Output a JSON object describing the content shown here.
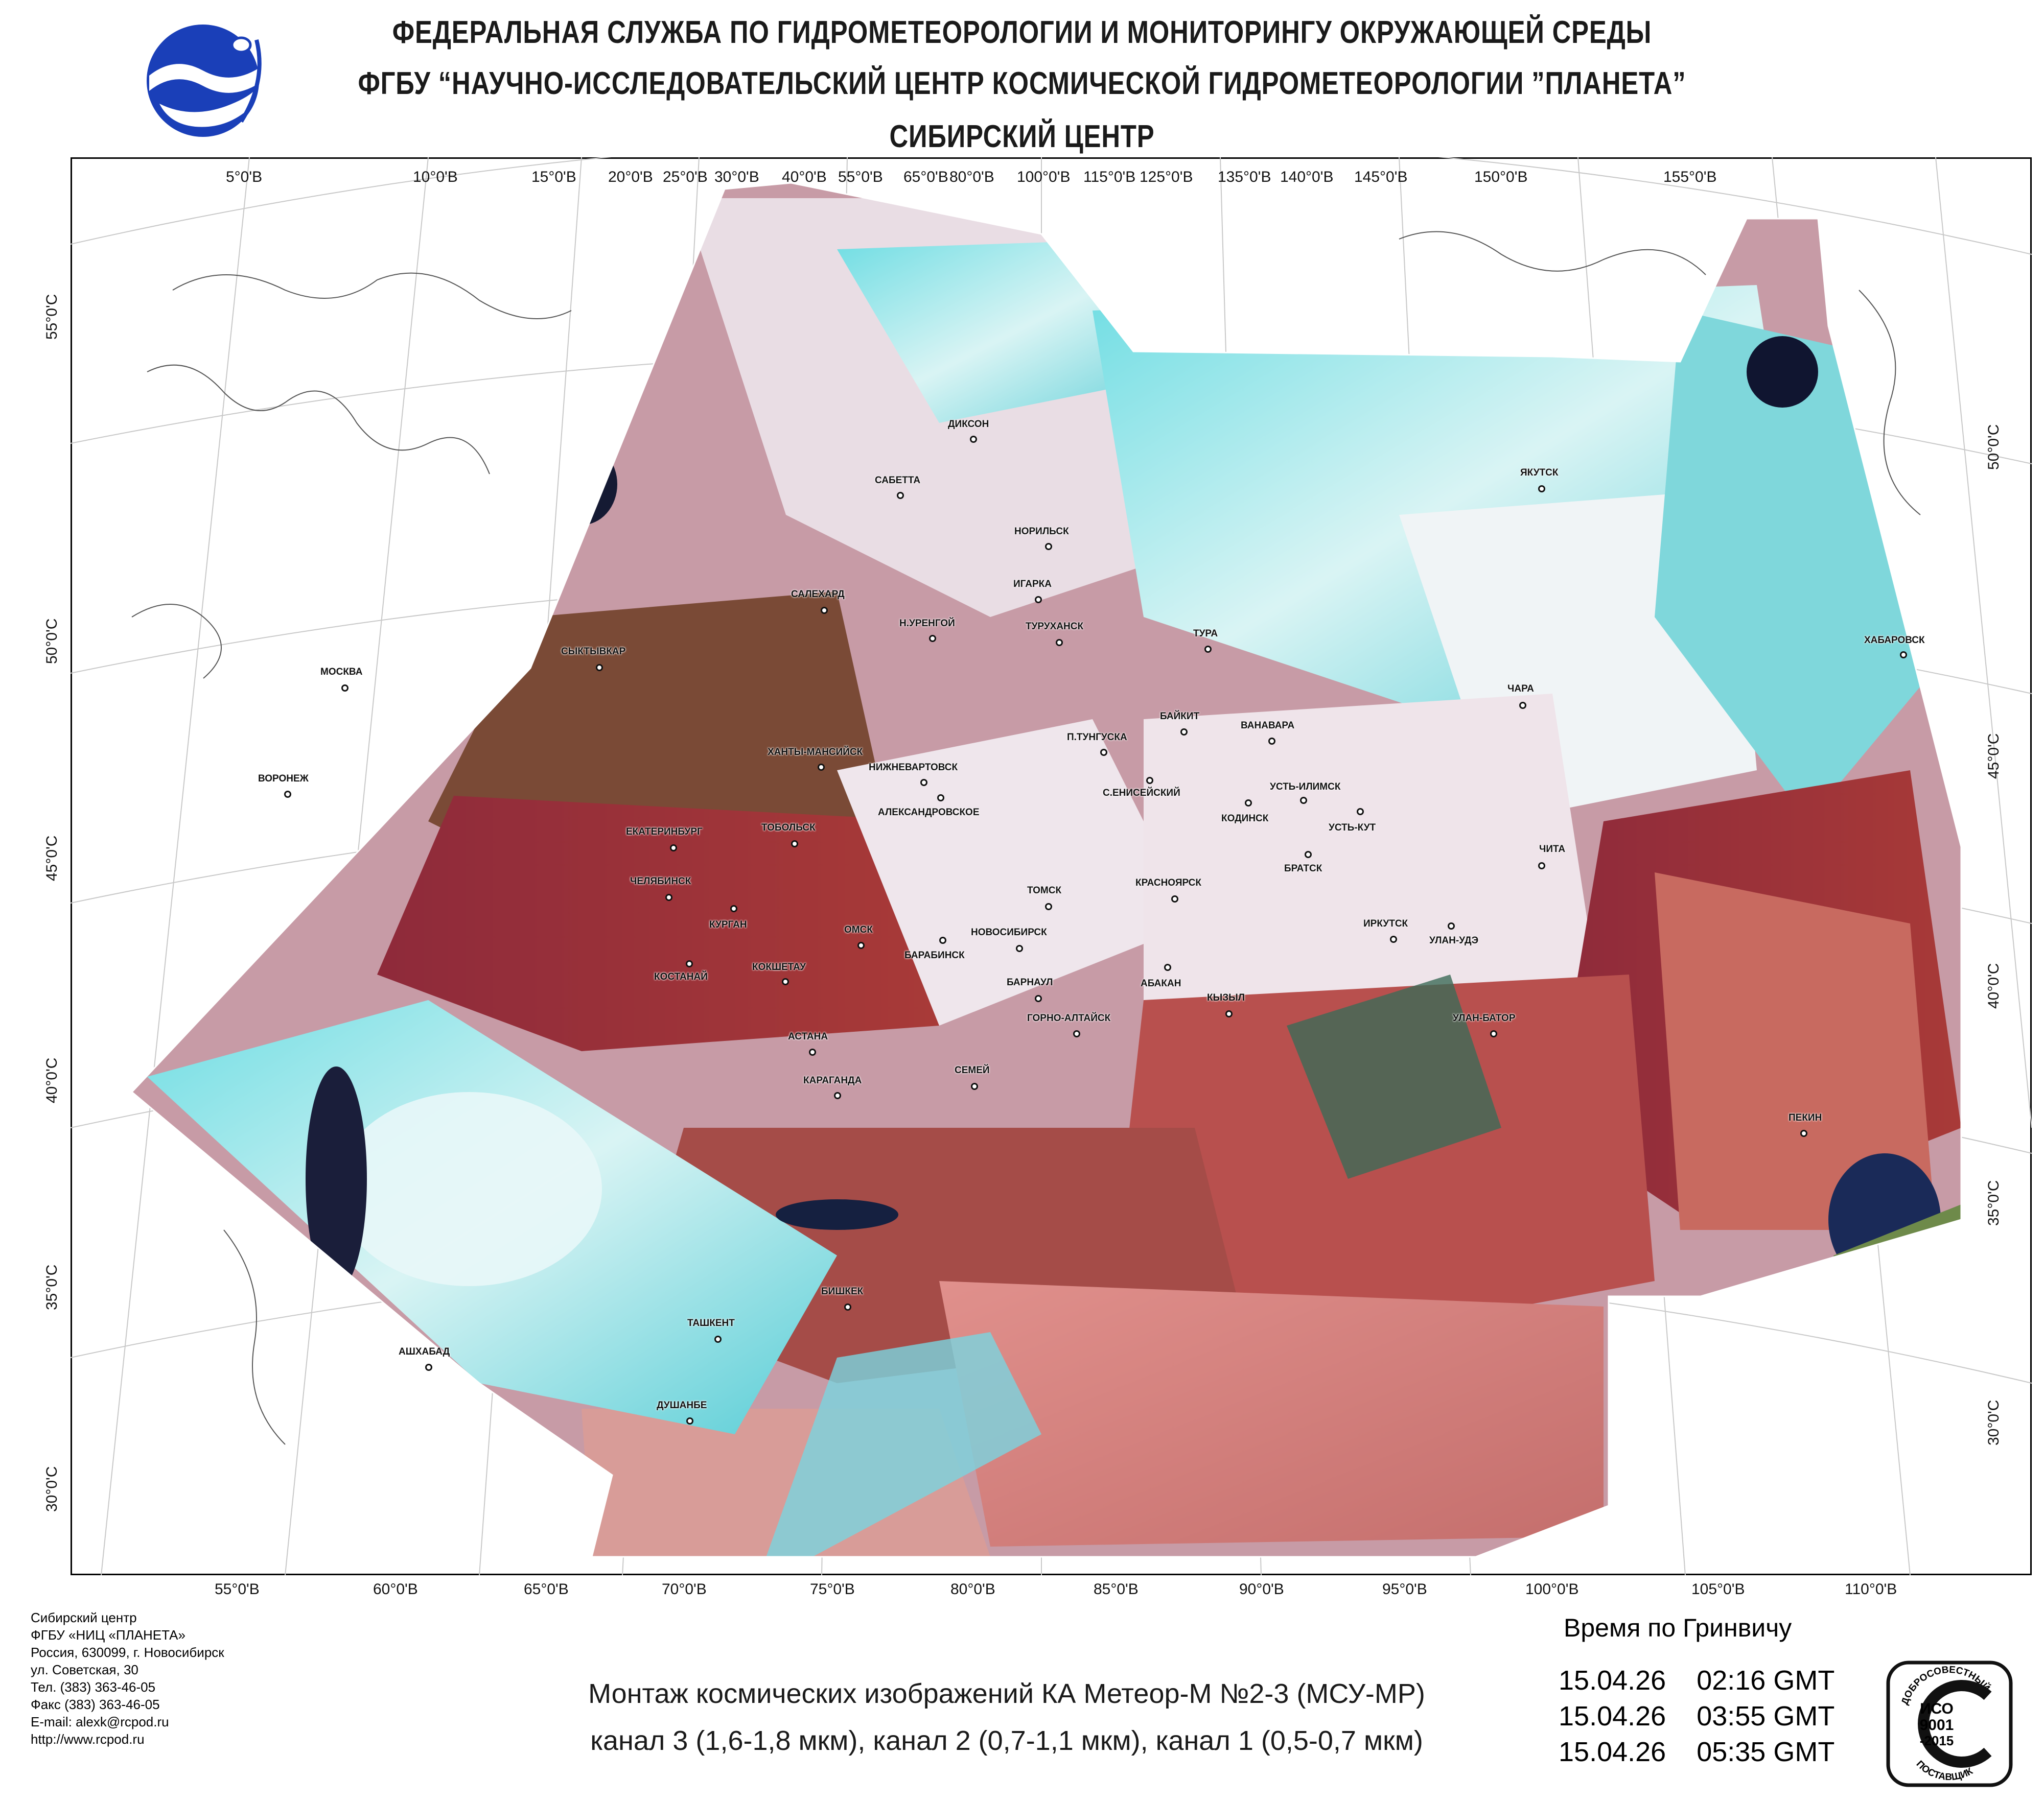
{
  "header": {
    "line1": "ФЕДЕРАЛЬНАЯ СЛУЖБА ПО ГИДРОМЕТЕОРОЛОГИИ И МОНИТОРИНГУ ОКРУЖАЮЩЕЙ СРЕДЫ",
    "line2": "ФГБУ “НАУЧНО-ИССЛЕДОВАТЕЛЬСКИЙ ЦЕНТР КОСМИЧЕСКОЙ ГИДРОМЕТЕОРОЛОГИИ ”ПЛАНЕТА”",
    "line3": "СИБИРСКИЙ  ЦЕНТР"
  },
  "map": {
    "top_lon_labels": [
      "5°0'В",
      "10°0'В",
      "15°0'В",
      "20°0'В",
      "25°0'В",
      "30°0'В",
      "40°0'В",
      "55°0'В",
      "65°0'В",
      "80°0'В",
      "100°0'В",
      "115°0'В",
      "125°0'В",
      "135°0'В",
      "140°0'В",
      "145°0'В",
      "150°0'В",
      "155°0'В"
    ],
    "bottom_lon_labels": [
      "55°0'В",
      "60°0'В",
      "65°0'В",
      "70°0'В",
      "75°0'В",
      "80°0'В",
      "85°0'В",
      "90°0'В",
      "95°0'В",
      "100°0'В",
      "105°0'В",
      "110°0'В"
    ],
    "left_lat_labels": [
      "55°0'С",
      "50°0'С",
      "45°0'С",
      "40°0'С",
      "35°0'С",
      "30°0'С"
    ],
    "right_lat_labels": [
      "50°0'С",
      "45°0'С",
      "40°0'С",
      "35°0'С",
      "30°0'С"
    ],
    "cities": [
      "ДИКСОН",
      "САБЕТТА",
      "НОРИЛЬСК",
      "ЯКУТСК",
      "ИГАРКА",
      "САЛЕХАРД",
      "Н.УРЕНГОЙ",
      "ТУРУХАНСК",
      "ТУРА",
      "ХАБАРОВСК",
      "СЫКТЫВКАР",
      "МОСКВА",
      "ЧАРА",
      "БАЙКИТ",
      "ВАНАВАРА",
      "П.ТУНГУСКА",
      "ХАНТЫ-МАНСИЙСК",
      "НИЖНЕВАРТОВСК",
      "С.ЕНИСЕЙСКИЙ",
      "ВОРОНЕЖ",
      "УСТЬ-ИЛИМСК",
      "КОДИНСК",
      "УСТЬ-КУТ",
      "АЛЕКСАНДРОВСКОЕ",
      "ТОБОЛЬСК",
      "ЕКАТЕРИНБУРГ",
      "БРАТСК",
      "ЧИТА",
      "ЧЕЛЯБИНСК",
      "ТОМСК",
      "КРАСНОЯРСК",
      "КУРГАН",
      "ОМСК",
      "НОВОСИБИРСК",
      "ИРКУТСК",
      "УЛАН-УДЭ",
      "БАРАБИНСК",
      "КОСТАНАЙ",
      "КОКШЕТАУ",
      "АБАКАН",
      "БАРНАУЛ",
      "КЫЗЫЛ",
      "ГОРНО-АЛТАЙСК",
      "УЛАН-БАТОР",
      "АСТАНА",
      "СЕМЕЙ",
      "КАРАГАНДА",
      "ПЕКИН",
      "БИШКЕК",
      "ТАШКЕНТ",
      "АШХАБАД",
      "ДУШАНБЕ"
    ]
  },
  "footer": {
    "org_lines": [
      "Сибирский центр",
      "ФГБУ «НИЦ «ПЛАНЕТА»",
      "Россия, 630099, г. Новосибирск",
      "ул. Советская, 30",
      "Тел. (383) 363-46-05",
      "Факс (383) 363-46-05",
      "E-mail: alexk@rcpod.ru",
      "http://www.rcpod.ru"
    ],
    "caption_line1": "Монтаж космических изображений КА Метеор-М №2-3 (МСУ-МР)",
    "caption_line2": "канал 3 (1,6-1,8 мкм), канал 2 (0,7-1,1 мкм), канал 1 (0,5-0,7 мкм)",
    "gmt_title": "Время по Гринвичу",
    "times": [
      "15.04.26    02:16 GMT",
      "15.04.26    03:55 GMT",
      "15.04.26    05:35 GMT"
    ],
    "iso_text": {
      "top": "ДОБРОСОВЕСТНЫЙ",
      "mid1": "ИСО",
      "mid2": "9001",
      "mid3": "-2015",
      "bottom": "ПОСТАВЩИК"
    }
  },
  "colors": {
    "cloud_cyan": "#5ad6dc",
    "land_red": "#a0303a",
    "cloud_white": "#f2eaf0",
    "desert": "#d88a86",
    "water": "#101838",
    "logo_blue": "#1a3fb8"
  }
}
